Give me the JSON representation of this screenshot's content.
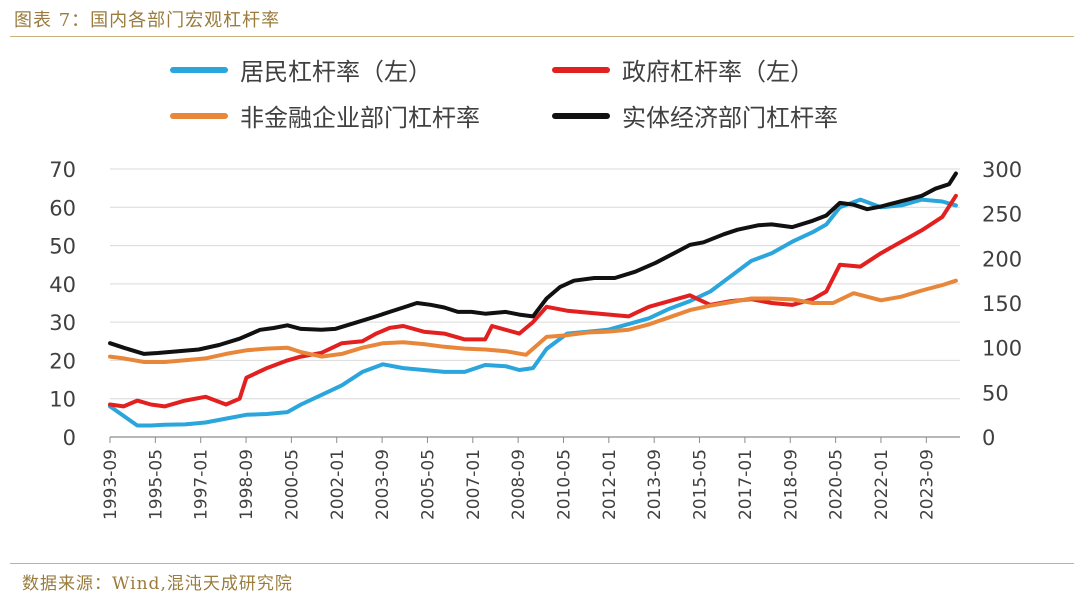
{
  "figure_title": "图表 7：国内各部门宏观杠杆率",
  "source": "数据来源：Wind,混沌天成研究院",
  "chart_data": {
    "type": "line",
    "legend": [
      {
        "label": "居民杠杆率（左）",
        "color": "#2aa6dc"
      },
      {
        "label": "政府杠杆率（左）",
        "color": "#e32020"
      },
      {
        "label": "非金融企业部门杠杆率",
        "color": "#e8873a"
      },
      {
        "label": "实体经济部门杠杆率",
        "color": "#111111"
      }
    ],
    "x_ticks": [
      "1993-09",
      "1995-05",
      "1997-01",
      "1998-09",
      "2000-05",
      "2002-01",
      "2003-09",
      "2005-05",
      "2007-01",
      "2008-09",
      "2010-05",
      "2012-01",
      "2013-09",
      "2015-05",
      "2017-01",
      "2018-09",
      "2020-05",
      "2022-01",
      "2023-09"
    ],
    "y_left": {
      "min": 0,
      "max": 70,
      "ticks": [
        0,
        10,
        20,
        30,
        40,
        50,
        60,
        70
      ]
    },
    "y_right": {
      "min": 0,
      "max": 300,
      "ticks": [
        0,
        50,
        100,
        150,
        200,
        250,
        300
      ]
    },
    "series": [
      {
        "name": "居民杠杆率（左）",
        "axis": "left",
        "color": "#2aa6dc",
        "x": [
          1993.75,
          1994.25,
          1994.75,
          1995.25,
          1995.75,
          1996.5,
          1997.25,
          1998,
          1998.75,
          1999.5,
          2000.25,
          2000.75,
          2001.5,
          2002.25,
          2003,
          2003.75,
          2004.5,
          2005.25,
          2006,
          2006.75,
          2007.5,
          2008.25,
          2008.75,
          2009.25,
          2009.75,
          2010.5,
          2011.25,
          2012,
          2012.75,
          2013.5,
          2014.25,
          2015,
          2015.75,
          2016.5,
          2017.25,
          2018,
          2018.75,
          2019.5,
          2020,
          2020.5,
          2021.25,
          2022,
          2022.75,
          2023.5,
          2024.25,
          2024.75
        ],
        "y": [
          8,
          5.5,
          3,
          3,
          3.2,
          3.3,
          3.8,
          4.8,
          5.8,
          6,
          6.5,
          8.5,
          11,
          13.5,
          17,
          19,
          18,
          17.5,
          17,
          17,
          18.8,
          18.5,
          17.5,
          18,
          23,
          27,
          27.5,
          28,
          29.5,
          31,
          33.5,
          35.5,
          38,
          42,
          46,
          48,
          51,
          53.5,
          55.5,
          60,
          62,
          60,
          60.5,
          62,
          61.5,
          60.5
        ]
      },
      {
        "name": "政府杠杆率（左）",
        "axis": "left",
        "color": "#e32020",
        "x": [
          1993.75,
          1994.25,
          1994.75,
          1995.25,
          1995.75,
          1996.5,
          1997.25,
          1998,
          1998.5,
          1998.75,
          1999.5,
          2000.25,
          2000.75,
          2001.5,
          2002.25,
          2003,
          2003.5,
          2004,
          2004.5,
          2005.25,
          2006,
          2006.75,
          2007.5,
          2007.75,
          2008.25,
          2008.75,
          2009.25,
          2009.75,
          2010.5,
          2011.25,
          2012,
          2012.75,
          2013.5,
          2014.25,
          2015,
          2015.75,
          2016.5,
          2017.25,
          2018,
          2018.75,
          2019.5,
          2020,
          2020.5,
          2021.25,
          2022,
          2022.75,
          2023.5,
          2024.25,
          2024.75
        ],
        "y": [
          8.5,
          8,
          9.5,
          8.5,
          8,
          9.5,
          10.5,
          8.5,
          10,
          15.5,
          18,
          20,
          21,
          22,
          24.5,
          25,
          27,
          28.5,
          29,
          27.5,
          27,
          25.5,
          25.5,
          29,
          28,
          27,
          30,
          34,
          33,
          32.5,
          32,
          31.5,
          34,
          35.5,
          37,
          34.5,
          35.5,
          36,
          35,
          34.5,
          36,
          38,
          45,
          44.5,
          48,
          51,
          54,
          57.5,
          63
        ]
      },
      {
        "name": "非金融企业部门杠杆率",
        "axis": "right",
        "color": "#e8873a",
        "x": [
          1993.75,
          1994.25,
          1995,
          1995.75,
          1996.5,
          1997.25,
          1998,
          1998.75,
          1999.5,
          2000.25,
          2000.75,
          2001.5,
          2002.25,
          2003,
          2003.75,
          2004.5,
          2005.25,
          2006,
          2006.75,
          2007.5,
          2008.25,
          2009,
          2009.75,
          2010.5,
          2011.25,
          2012,
          2012.75,
          2013.5,
          2014.25,
          2015,
          2015.75,
          2016.5,
          2017.25,
          2018,
          2018.75,
          2019.5,
          2020.25,
          2021,
          2022,
          2022.75,
          2023.5,
          2024.25,
          2024.75
        ],
        "y": [
          90,
          88,
          84,
          84,
          86,
          88,
          93,
          97,
          99,
          100,
          95,
          90,
          93,
          100,
          105,
          106,
          104,
          101,
          99,
          98,
          96,
          92,
          112,
          114,
          117,
          118,
          120,
          126,
          134,
          142,
          147,
          151,
          155,
          155,
          154,
          150,
          150,
          161,
          153,
          157,
          164,
          170,
          175
        ]
      },
      {
        "name": "实体经济部门杠杆率",
        "axis": "right",
        "color": "#111111",
        "x": [
          1993.75,
          1994.25,
          1995,
          1995.5,
          1996.25,
          1997,
          1997.75,
          1998.5,
          1999.25,
          1999.75,
          2000.25,
          2000.75,
          2001.5,
          2002,
          2002.75,
          2003.5,
          2004,
          2004.5,
          2005,
          2005.5,
          2006,
          2006.5,
          2007,
          2007.5,
          2008.25,
          2008.75,
          2009.25,
          2009.75,
          2010.25,
          2010.75,
          2011.5,
          2012.25,
          2013,
          2013.75,
          2014.5,
          2015,
          2015.5,
          2016.25,
          2016.75,
          2017.5,
          2018,
          2018.75,
          2019.5,
          2020,
          2020.5,
          2021,
          2021.5,
          2022,
          2022.5,
          2023,
          2023.5,
          2024,
          2024.5,
          2024.75
        ],
        "y": [
          105,
          100,
          93,
          94,
          96,
          98,
          103,
          110,
          120,
          122,
          125,
          121,
          120,
          121,
          128,
          135,
          140,
          145,
          150,
          148,
          145,
          140,
          140,
          138,
          140,
          137,
          135,
          155,
          168,
          175,
          178,
          178,
          185,
          195,
          207,
          215,
          218,
          227,
          232,
          237,
          238,
          235,
          242,
          248,
          262,
          260,
          255,
          258,
          262,
          266,
          270,
          278,
          283,
          295
        ]
      }
    ]
  }
}
